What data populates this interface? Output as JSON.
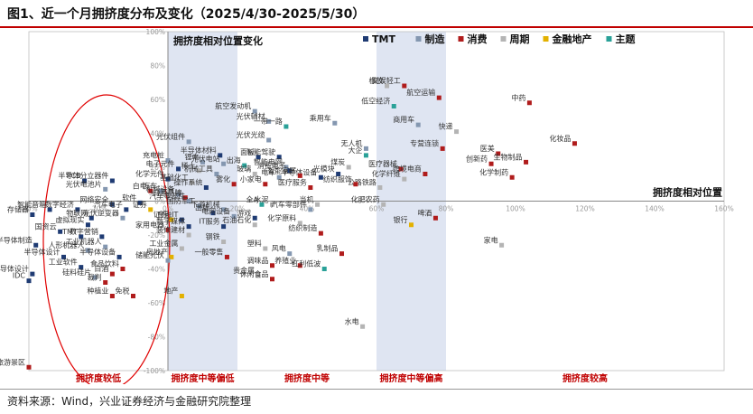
{
  "figure_title": "图1、近一个月拥挤度分布及变化（2025/4/30-2025/5/30）",
  "source": "资料来源：Wind，兴业证券经济与金融研究院整理",
  "colors": {
    "TMT": "#1f3b73",
    "制造": "#8497b0",
    "消费": "#b01c1c",
    "周期": "#b4b4b4",
    "金融地产": "#e3b100",
    "主题": "#2aa198",
    "zone_shade": "#dfe5f2",
    "zone_text": "#c00000",
    "ellipse": "#e00000"
  },
  "chart_data": {
    "type": "scatter",
    "xlabel": "拥挤度相对位置",
    "ylabel": "拥挤度相对位置变化",
    "xlim": [
      -40,
      160
    ],
    "ylim": [
      -100,
      100
    ],
    "x_ticks": [
      "-40%",
      "-20%",
      "0%",
      "20%",
      "40%",
      "60%",
      "80%",
      "100%",
      "120%",
      "140%",
      "160%"
    ],
    "y_ticks": [
      "100%",
      "80%",
      "60%",
      "40%",
      "20%",
      "0%",
      "-20%",
      "-40%",
      "-60%",
      "-80%",
      "-100%"
    ],
    "legend": [
      "TMT",
      "制造",
      "消费",
      "周期",
      "金融地产",
      "主题"
    ],
    "zones": [
      {
        "label": "拥挤度较低",
        "x_range": [
          -40,
          0
        ],
        "shaded": false
      },
      {
        "label": "拥挤度中等偏低",
        "x_range": [
          0,
          20
        ],
        "shaded": true
      },
      {
        "label": "拥挤度中等",
        "x_range": [
          20,
          60
        ],
        "shaded": false
      },
      {
        "label": "拥挤度中等偏高",
        "x_range": [
          60,
          80
        ],
        "shaded": true
      },
      {
        "label": "拥挤度较高",
        "x_range": [
          80,
          160
        ],
        "shaded": false
      }
    ],
    "points": [
      {
        "name": "航空发动机",
        "x": 25,
        "y": 53,
        "group": "制造"
      },
      {
        "name": "光伏辅材",
        "x": 29,
        "y": 47,
        "group": "制造"
      },
      {
        "name": "一带一路",
        "x": 34,
        "y": 44,
        "group": "主题"
      },
      {
        "name": "光伏组件",
        "x": 6,
        "y": 35,
        "group": "制造"
      },
      {
        "name": "光伏光缆",
        "x": 29,
        "y": 36,
        "group": "制造"
      },
      {
        "name": "乘用车",
        "x": 48,
        "y": 46,
        "group": "制造"
      },
      {
        "name": "橡胶",
        "x": 63,
        "y": 68,
        "group": "周期"
      },
      {
        "name": "文娱轻工",
        "x": 68,
        "y": 68,
        "group": "消费"
      },
      {
        "name": "航空运输",
        "x": 78,
        "y": 61,
        "group": "消费"
      },
      {
        "name": "低空经济",
        "x": 65,
        "y": 56,
        "group": "主题"
      },
      {
        "name": "中药",
        "x": 104,
        "y": 58,
        "group": "消费"
      },
      {
        "name": "商用车",
        "x": 72,
        "y": 45,
        "group": "制造"
      },
      {
        "name": "快递",
        "x": 83,
        "y": 41,
        "group": "周期"
      },
      {
        "name": "化妆品",
        "x": 117,
        "y": 34,
        "group": "消费"
      },
      {
        "name": "无人机",
        "x": 57,
        "y": 31,
        "group": "制造"
      },
      {
        "name": "大企",
        "x": 57,
        "y": 27,
        "group": "主题"
      },
      {
        "name": "专营连锁",
        "x": 79,
        "y": 31,
        "group": "消费"
      },
      {
        "name": "医美",
        "x": 95,
        "y": 28,
        "group": "消费"
      },
      {
        "name": "生物制品",
        "x": 103,
        "y": 23,
        "group": "消费"
      },
      {
        "name": "创新药",
        "x": 93,
        "y": 22,
        "group": "消费"
      },
      {
        "name": "化学制药",
        "x": 99,
        "y": 14,
        "group": "消费"
      },
      {
        "name": "医疗器械",
        "x": 67,
        "y": 19,
        "group": "消费"
      },
      {
        "name": "跨境电商",
        "x": 74,
        "y": 16,
        "group": "消费"
      },
      {
        "name": "化学纤维",
        "x": 68,
        "y": 13,
        "group": "周期"
      },
      {
        "name": "公路铁路",
        "x": 61,
        "y": 8,
        "group": "周期"
      },
      {
        "name": "纺织服饰",
        "x": 54,
        "y": 10,
        "group": "消费"
      },
      {
        "name": "煤炭",
        "x": 52,
        "y": 20,
        "group": "周期"
      },
      {
        "name": "光模块",
        "x": 49,
        "y": 16,
        "group": "TMT"
      },
      {
        "name": "半导体材料",
        "x": 15,
        "y": 27,
        "group": "TMT"
      },
      {
        "name": "充电桩",
        "x": 0,
        "y": 24,
        "group": "制造"
      },
      {
        "name": "锂电",
        "x": 10,
        "y": 23,
        "group": "制造"
      },
      {
        "name": "光伏电站",
        "x": 16,
        "y": 22,
        "group": "制造"
      },
      {
        "name": "面板",
        "x": 26,
        "y": 26,
        "group": "TMT"
      },
      {
        "name": "智能驾驶",
        "x": 32,
        "y": 26,
        "group": "TMT"
      },
      {
        "name": "出海",
        "x": 22,
        "y": 21,
        "group": "主题"
      },
      {
        "name": "智能电网",
        "x": 34,
        "y": 20,
        "group": "制造"
      },
      {
        "name": "消费电子",
        "x": 35,
        "y": 18,
        "group": "TMT"
      },
      {
        "name": "电子元件",
        "x": 3,
        "y": 19,
        "group": "TMT"
      },
      {
        "name": "稀土",
        "x": 9,
        "y": 18,
        "group": "周期"
      },
      {
        "name": "机械工具",
        "x": 14,
        "y": 16,
        "group": "制造"
      },
      {
        "name": "玻璃",
        "x": 25,
        "y": 16,
        "group": "周期"
      },
      {
        "name": "电车",
        "x": 32,
        "y": 14,
        "group": "制造"
      },
      {
        "name": "半导体设备",
        "x": 44,
        "y": 14,
        "group": "TMT"
      },
      {
        "name": "智能家居",
        "x": 38,
        "y": 15,
        "group": "消费"
      },
      {
        "name": "化学元件",
        "x": 0,
        "y": 13,
        "group": "TMT"
      },
      {
        "name": "基础化工",
        "x": 7,
        "y": 11,
        "group": "周期"
      },
      {
        "name": "雾化",
        "x": 19,
        "y": 10,
        "group": "消费"
      },
      {
        "name": "小家电",
        "x": 28,
        "y": 10,
        "group": "消费"
      },
      {
        "name": "医疗服务",
        "x": 41,
        "y": 8,
        "group": "消费"
      },
      {
        "name": "操作系统",
        "x": 11,
        "y": 8,
        "group": "TMT"
      },
      {
        "name": "PCB",
        "x": -24,
        "y": 12,
        "group": "TMT"
      },
      {
        "name": "半导体分立器件",
        "x": -16,
        "y": 12,
        "group": "TMT"
      },
      {
        "name": "光伏电池片",
        "x": -18,
        "y": 7,
        "group": "制造"
      },
      {
        "name": "白电",
        "x": -5,
        "y": 6,
        "group": "消费"
      },
      {
        "name": "汽车",
        "x": -2,
        "y": 6,
        "group": "制造"
      },
      {
        "name": "网络安全",
        "x": -16,
        "y": -2,
        "group": "TMT"
      },
      {
        "name": "软件",
        "x": -8,
        "y": -1,
        "group": "TMT"
      },
      {
        "name": "汽车电子",
        "x": -12,
        "y": -5,
        "group": "TMT"
      },
      {
        "name": "证券",
        "x": -5,
        "y": -5,
        "group": "金融地产"
      },
      {
        "name": "智能音箱",
        "x": -34,
        "y": -5,
        "group": "TMT"
      },
      {
        "name": "数字经济",
        "x": -26,
        "y": -5,
        "group": "TMT"
      },
      {
        "name": "存储器",
        "x": -39,
        "y": -8,
        "group": "TMT"
      },
      {
        "name": "物联网",
        "x": -22,
        "y": -10,
        "group": "TMT"
      },
      {
        "name": "光伏逆变器",
        "x": -13,
        "y": -10,
        "group": "制造"
      },
      {
        "name": "虚拟现实",
        "x": -23,
        "y": -14,
        "group": "TMT"
      },
      {
        "name": "国资云",
        "x": -31,
        "y": -18,
        "group": "TMT"
      },
      {
        "name": "TMT",
        "x": -25,
        "y": -21,
        "group": "TMT"
      },
      {
        "name": "数字营销",
        "x": -19,
        "y": -21,
        "group": "TMT"
      },
      {
        "name": "半导体制造",
        "x": -38,
        "y": -26,
        "group": "TMT"
      },
      {
        "name": "工业机器人",
        "x": -18,
        "y": -27,
        "group": "制造"
      },
      {
        "name": "人形机器人",
        "x": -23,
        "y": -29,
        "group": "制造"
      },
      {
        "name": "半导体设计",
        "x": -30,
        "y": -33,
        "group": "TMT"
      },
      {
        "name": "半导体设备",
        "x": -14,
        "y": -33,
        "group": "TMT"
      },
      {
        "name": "工业软件",
        "x": -25,
        "y": -39,
        "group": "TMT"
      },
      {
        "name": "半导体设计",
        "x": -39,
        "y": -43,
        "group": "TMT"
      },
      {
        "name": "IDC",
        "x": -40,
        "y": -47,
        "group": "TMT"
      },
      {
        "name": "硅料硅片",
        "x": -21,
        "y": -45,
        "group": "制造"
      },
      {
        "name": "白酒",
        "x": -16,
        "y": -43,
        "group": "消费"
      },
      {
        "name": "食品饮料",
        "x": -13,
        "y": -40,
        "group": "消费"
      },
      {
        "name": "裁判",
        "x": -18,
        "y": -48,
        "group": "消费"
      },
      {
        "name": "种植业",
        "x": -16,
        "y": -56,
        "group": "消费"
      },
      {
        "name": "免税",
        "x": -10,
        "y": -56,
        "group": "消费"
      },
      {
        "name": "旅游景区",
        "x": -40,
        "y": -98,
        "group": "消费"
      },
      {
        "name": "机械设备",
        "x": 3,
        "y": 4,
        "group": "制造"
      },
      {
        "name": "白酒品牌",
        "x": 5,
        "y": 2,
        "group": "消费"
      },
      {
        "name": "汽车零部件",
        "x": 6,
        "y": 0,
        "group": "制造"
      },
      {
        "name": "国防军工",
        "x": 9,
        "y": -3,
        "group": "制造"
      },
      {
        "name": "下游机械",
        "x": 16,
        "y": -5,
        "group": "制造"
      },
      {
        "name": "全A",
        "x": 27,
        "y": -2,
        "group": "主题"
      },
      {
        "name": "水泥",
        "x": 30,
        "y": -2,
        "group": "周期"
      },
      {
        "name": "当机",
        "x": 43,
        "y": -2,
        "group": "周期"
      },
      {
        "name": "汽车零部件",
        "x": 41,
        "y": -5,
        "group": "制造"
      },
      {
        "name": "化肥农药",
        "x": 62,
        "y": -2,
        "group": "周期"
      },
      {
        "name": "出版",
        "x": 13,
        "y": -7,
        "group": "TMT"
      },
      {
        "name": "电网设备",
        "x": 19,
        "y": -9,
        "group": "制造"
      },
      {
        "name": "游戏",
        "x": 25,
        "y": -10,
        "group": "TMT"
      },
      {
        "name": "金融IT",
        "x": 4,
        "y": -11,
        "group": "TMT"
      },
      {
        "name": "证券",
        "x": 1,
        "y": -11,
        "group": "金融地产"
      },
      {
        "name": "数字媒体",
        "x": 6,
        "y": -15,
        "group": "TMT"
      },
      {
        "name": "IT服务",
        "x": 16,
        "y": -15,
        "group": "TMT"
      },
      {
        "name": "石油石化",
        "x": 25,
        "y": -14,
        "group": "周期"
      },
      {
        "name": "化学原料",
        "x": 38,
        "y": -13,
        "group": "周期"
      },
      {
        "name": "银行",
        "x": 70,
        "y": -14,
        "group": "金融地产"
      },
      {
        "name": "啤酒",
        "x": 77,
        "y": -10,
        "group": "消费"
      },
      {
        "name": "家用电器",
        "x": 0,
        "y": -17,
        "group": "消费"
      },
      {
        "name": "装修建材",
        "x": 6,
        "y": -20,
        "group": "周期"
      },
      {
        "name": "纺织制造",
        "x": 44,
        "y": -19,
        "group": "消费"
      },
      {
        "name": "家电",
        "x": 96,
        "y": -26,
        "group": "周期"
      },
      {
        "name": "钢铁",
        "x": 16,
        "y": -24,
        "group": "周期"
      },
      {
        "name": "工业金属",
        "x": 4,
        "y": -28,
        "group": "周期"
      },
      {
        "name": "塑料",
        "x": 28,
        "y": -28,
        "group": "周期"
      },
      {
        "name": "风电",
        "x": 35,
        "y": -31,
        "group": "制造"
      },
      {
        "name": "乳制品",
        "x": 50,
        "y": -31,
        "group": "消费"
      },
      {
        "name": "房地产",
        "x": 1,
        "y": -33,
        "group": "金融地产"
      },
      {
        "name": "储能光伏",
        "x": 0,
        "y": -35,
        "group": "制造"
      },
      {
        "name": "一般零售",
        "x": 17,
        "y": -33,
        "group": "消费"
      },
      {
        "name": "养殖业",
        "x": 38,
        "y": -38,
        "group": "消费"
      },
      {
        "name": "调味品",
        "x": 30,
        "y": -38,
        "group": "消费"
      },
      {
        "name": "红利低波",
        "x": 45,
        "y": -40,
        "group": "主题"
      },
      {
        "name": "贵金属",
        "x": 26,
        "y": -44,
        "group": "周期"
      },
      {
        "name": "休闲食品",
        "x": 30,
        "y": -46,
        "group": "消费"
      },
      {
        "name": "地产",
        "x": 4,
        "y": -56,
        "group": "金融地产"
      },
      {
        "name": "水电",
        "x": 56,
        "y": -74,
        "group": "周期"
      }
    ]
  }
}
